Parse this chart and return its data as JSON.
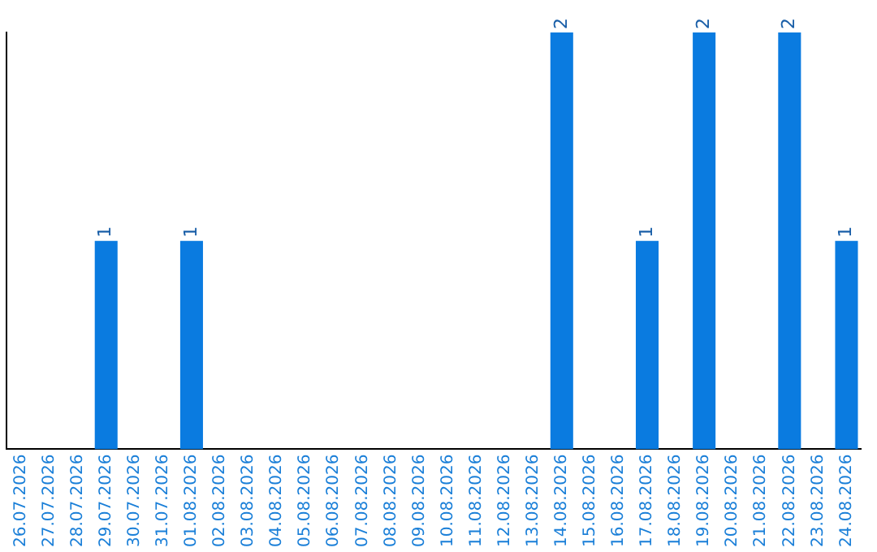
{
  "chart_data": {
    "type": "bar",
    "categories": [
      "26.07.2026",
      "27.07.2026",
      "28.07.2026",
      "29.07.2026",
      "30.07.2026",
      "31.07.2026",
      "01.08.2026",
      "02.08.2026",
      "03.08.2026",
      "04.08.2026",
      "05.08.2026",
      "06.08.2026",
      "07.08.2026",
      "08.08.2026",
      "09.08.2026",
      "10.08.2026",
      "11.08.2026",
      "12.08.2026",
      "13.08.2026",
      "14.08.2026",
      "15.08.2026",
      "16.08.2026",
      "17.08.2026",
      "18.08.2026",
      "19.08.2026",
      "20.08.2026",
      "21.08.2026",
      "22.08.2026",
      "23.08.2026",
      "24.08.2026"
    ],
    "values": [
      0,
      0,
      0,
      1,
      0,
      0,
      1,
      0,
      0,
      0,
      0,
      0,
      0,
      0,
      0,
      0,
      0,
      0,
      0,
      2,
      0,
      0,
      1,
      0,
      2,
      0,
      0,
      2,
      0,
      1
    ],
    "value_labels": [
      null,
      null,
      null,
      "1",
      null,
      null,
      "1",
      null,
      null,
      null,
      null,
      null,
      null,
      null,
      null,
      null,
      null,
      null,
      null,
      "2",
      null,
      null,
      "1",
      null,
      "2",
      null,
      null,
      "2",
      null,
      "1"
    ],
    "color": "#0a7be0",
    "ylim": [
      0,
      2
    ],
    "tick_labels": "x",
    "grid": false,
    "legend": false
  }
}
